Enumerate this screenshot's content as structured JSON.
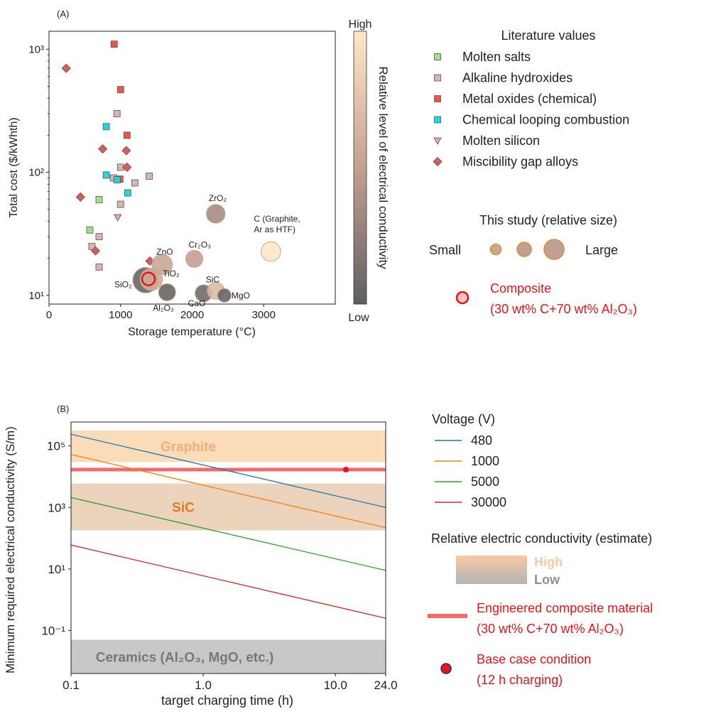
{
  "chart_data": [
    {
      "panel": "(A)",
      "type": "scatter",
      "xlabel": "Storage temperature (°C)",
      "ylabel": "Total cost ($/kWhth)",
      "xlim": [
        0,
        4000
      ],
      "ylim": [
        8.5,
        1400
      ],
      "yscale": "log",
      "xticks": [
        0,
        1000,
        2000,
        3000
      ],
      "yticks": [
        {
          "value": 10,
          "label": "10¹"
        },
        {
          "value": 100,
          "label": "10²"
        },
        {
          "value": 1000,
          "label": "10³"
        }
      ],
      "colorbar": {
        "label": "Relative level of electrical conductivity",
        "high": "High",
        "low": "Low",
        "colors": {
          "high": "#fde8c8",
          "mid": "#c4a090",
          "low": "#5e5e62"
        }
      },
      "legend_title": "Literature values",
      "series": [
        {
          "name": "Molten salts",
          "marker": "square",
          "color": "#9ee37c",
          "points": [
            [
              570,
              34
            ],
            [
              700,
              60
            ]
          ]
        },
        {
          "name": "Alkaline hydroxides",
          "marker": "square",
          "color": "#d8b4b4",
          "points": [
            [
              600,
              25
            ],
            [
              700,
              17
            ],
            [
              700,
              30
            ],
            [
              900,
              90
            ],
            [
              950,
              300
            ],
            [
              1000,
              110
            ],
            [
              1000,
              55
            ],
            [
              1200,
              82
            ],
            [
              1400,
              93
            ]
          ]
        },
        {
          "name": "Metal oxides (chemical)",
          "marker": "square",
          "color": "#ee5544",
          "points": [
            [
              910,
              1100
            ],
            [
              1000,
              470
            ],
            [
              1090,
              200
            ],
            [
              990,
              88
            ]
          ]
        },
        {
          "name": "Chemical looping combustion",
          "marker": "square",
          "color": "#1ed8e0",
          "points": [
            [
              800,
              235
            ],
            [
              800,
              95
            ],
            [
              950,
              87
            ],
            [
              1100,
              68
            ]
          ]
        },
        {
          "name": "Molten silicon",
          "marker": "triangle-down",
          "color": "#f4a6a0",
          "points": [
            [
              960,
              43
            ]
          ]
        },
        {
          "name": "Miscibility gap alloys",
          "marker": "diamond",
          "color": "#e25a55",
          "points": [
            [
              240,
              700
            ],
            [
              440,
              63
            ],
            [
              650,
              23
            ],
            [
              750,
              155
            ],
            [
              1080,
              150
            ],
            [
              1090,
              110
            ],
            [
              1410,
              19
            ]
          ]
        }
      ],
      "this_study": {
        "title": "This study (relative size)",
        "small_label": "Small",
        "large_label": "Large",
        "materials": [
          {
            "name": "SiO₂",
            "x": 1350,
            "y": 13.3,
            "size": 3,
            "conductivity": 0.05
          },
          {
            "name": "TiO₂",
            "x": 1430,
            "y": 13.5,
            "size": 2.6,
            "conductivity": 0.6
          },
          {
            "name": "ZnO",
            "x": 1580,
            "y": 17.8,
            "size": 2.4,
            "conductivity": 0.55
          },
          {
            "name": "Al₂O₃",
            "x": 1650,
            "y": 10.6,
            "size": 2,
            "conductivity": 0.05
          },
          {
            "name": "Cr₂O₃",
            "x": 2030,
            "y": 19.8,
            "size": 2,
            "conductivity": 0.5
          },
          {
            "name": "CaO",
            "x": 2160,
            "y": 10.4,
            "size": 2,
            "conductivity": 0.1
          },
          {
            "name": "SiC",
            "x": 2330,
            "y": 10.9,
            "size": 2,
            "conductivity": 0.7
          },
          {
            "name": "MgO",
            "x": 2450,
            "y": 10,
            "size": 1.6,
            "conductivity": 0.05
          },
          {
            "name": "ZrO₂",
            "x": 2330,
            "y": 46,
            "size": 2.2,
            "conductivity": 0.35
          },
          {
            "name": "C (Graphite,\nAr as HTF)",
            "x": 3100,
            "y": 22.7,
            "size": 2.3,
            "conductivity": 1.0
          }
        ],
        "composite": {
          "x": 1390,
          "y": 13.6,
          "label_line1": "Composite",
          "label_line2": "(30 wt% C+70 wt% Al₂O₃)"
        }
      }
    },
    {
      "panel": "(B)",
      "type": "line",
      "xlabel": "target charging time (h)",
      "ylabel": "Minimum required electrical conductivity (S/m)",
      "xscale": "log",
      "yscale": "log",
      "xlim": [
        0.1,
        24
      ],
      "ylim": [
        0.004,
        600000
      ],
      "xticks": [
        {
          "value": 0.1,
          "label": "0.1"
        },
        {
          "value": 1,
          "label": "1.0"
        },
        {
          "value": 10,
          "label": "10.0"
        },
        {
          "value": 24,
          "label": "24.0"
        }
      ],
      "yticks": [
        {
          "value": 0.1,
          "label": "10⁻¹"
        },
        {
          "value": 10,
          "label": "10¹"
        },
        {
          "value": 1000,
          "label": "10³"
        },
        {
          "value": 100000,
          "label": "10⁵"
        }
      ],
      "legend_title": "Voltage (V)",
      "series": [
        {
          "name": "480",
          "color": "#1f77b4",
          "x": [
            0.1,
            24
          ],
          "y": [
            240000,
            1000
          ]
        },
        {
          "name": "1000",
          "color": "#ff7f0e",
          "x": [
            0.1,
            24
          ],
          "y": [
            53000,
            220
          ]
        },
        {
          "name": "5000",
          "color": "#2ca02c",
          "x": [
            0.1,
            24
          ],
          "y": [
            2100,
            9
          ]
        },
        {
          "name": "30000",
          "color": "#d62728",
          "x": [
            0.1,
            24
          ],
          "y": [
            60,
            0.25
          ]
        }
      ],
      "bands": [
        {
          "name": "Graphite",
          "y0": 30000,
          "y1": 320000,
          "color": "#fbdcb8",
          "text_color": "#f0b07a"
        },
        {
          "name": "SiC",
          "y0": 180,
          "y1": 6000,
          "color": "#ecd3bc",
          "text_color": "#e07a2a"
        },
        {
          "name": "Ceramics (Al₂O₃, MgO, etc.)",
          "y0": 0.004,
          "y1": 0.05,
          "color": "#c8c8c8",
          "text_color": "#777777"
        }
      ],
      "composite_line": {
        "y": 17000,
        "color": "#f26a6a",
        "label_line1": "Engineered composite material",
        "label_line2": "(30 wt% C+70 wt% Al₂O₃)"
      },
      "base_case": {
        "x": 12,
        "y": 17000,
        "color": "#e8141a",
        "label_line1": "Base case condition",
        "label_line2": "(12 h charging)"
      },
      "conductivity_legend": {
        "title": "Relative electric conductivity (estimate)",
        "high": "High",
        "low": "Low"
      }
    }
  ]
}
